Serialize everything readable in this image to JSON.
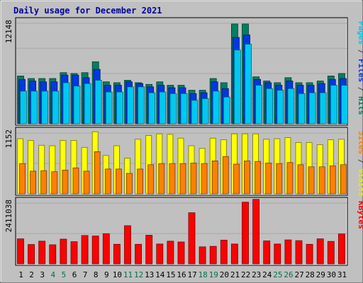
{
  "title": "Daily usage for December 2021",
  "chart_data": [
    {
      "type": "bar",
      "name": "hits-files-pages",
      "max_label": "12148",
      "right_label_parts": [
        {
          "text": "Pages",
          "color": "#00c8f0"
        },
        {
          "text": " / ",
          "color": "#404040"
        },
        {
          "text": "Files",
          "color": "#0038e0"
        },
        {
          "text": " / ",
          "color": "#404040"
        },
        {
          "text": "Hits",
          "color": "#008060"
        }
      ],
      "ylim": [
        0,
        12148
      ],
      "categories": [
        "1",
        "2",
        "3",
        "4",
        "5",
        "6",
        "7",
        "8",
        "9",
        "10",
        "11",
        "12",
        "13",
        "14",
        "15",
        "16",
        "17",
        "18",
        "19",
        "20",
        "21",
        "22",
        "23",
        "24",
        "25",
        "26",
        "27",
        "28",
        "29",
        "30",
        "31"
      ],
      "series": [
        {
          "name": "Hits",
          "color": "#008060",
          "values": [
            5700,
            5400,
            5400,
            5400,
            6100,
            6000,
            6100,
            7400,
            5000,
            4900,
            5200,
            4900,
            4700,
            5000,
            4600,
            4600,
            4000,
            4000,
            5400,
            4900,
            11900,
            11900,
            5600,
            5100,
            4900,
            5500,
            4900,
            4900,
            5100,
            5700,
            6000
          ]
        },
        {
          "name": "Files",
          "color": "#0038e0",
          "values": [
            5300,
            5100,
            5000,
            5000,
            5800,
            5800,
            5500,
            6500,
            4600,
            4600,
            5000,
            4800,
            4400,
            4600,
            4300,
            4300,
            3600,
            3700,
            5000,
            4200,
            10300,
            10600,
            5300,
            4900,
            4600,
            5100,
            4600,
            4600,
            4800,
            5300,
            5400
          ]
        },
        {
          "name": "Pages",
          "color": "#00c8f0",
          "values": [
            3900,
            3900,
            3900,
            3900,
            4900,
            4500,
            4800,
            5200,
            3800,
            3800,
            4400,
            4400,
            3700,
            3800,
            3600,
            3600,
            2800,
            3000,
            3900,
            3200,
            8800,
            9500,
            4600,
            4200,
            4000,
            4200,
            3600,
            3700,
            3700,
            4600,
            4600
          ]
        }
      ]
    },
    {
      "type": "bar",
      "name": "visits-sites",
      "max_label": "1152",
      "right_label_parts": [
        {
          "text": "Sites",
          "color": "#ff8000"
        },
        {
          "text": " / ",
          "color": "#404040"
        },
        {
          "text": "Visits",
          "color": "#e8e800"
        }
      ],
      "ylim": [
        0,
        1152
      ],
      "categories": [
        "1",
        "2",
        "3",
        "4",
        "5",
        "6",
        "7",
        "8",
        "9",
        "10",
        "11",
        "12",
        "13",
        "14",
        "15",
        "16",
        "17",
        "18",
        "19",
        "20",
        "21",
        "22",
        "23",
        "24",
        "25",
        "26",
        "27",
        "28",
        "29",
        "30",
        "31"
      ],
      "series": [
        {
          "name": "Visits",
          "color": "#ffff00",
          "values": [
            1020,
            990,
            900,
            890,
            990,
            990,
            860,
            1150,
            710,
            890,
            660,
            1010,
            1080,
            1110,
            1100,
            1030,
            890,
            840,
            1030,
            1000,
            1110,
            1110,
            1110,
            1010,
            1020,
            1040,
            950,
            950,
            910,
            1000,
            1010
          ]
        },
        {
          "name": "Sites",
          "color": "#ff8000",
          "values": [
            560,
            420,
            430,
            410,
            440,
            480,
            420,
            780,
            460,
            460,
            380,
            460,
            540,
            560,
            560,
            560,
            570,
            560,
            610,
            690,
            550,
            610,
            600,
            570,
            560,
            580,
            540,
            500,
            500,
            520,
            540
          ]
        }
      ]
    },
    {
      "type": "bar",
      "name": "kbytes",
      "max_label": "2411038",
      "right_label_parts": [
        {
          "text": "KBytes",
          "color": "#ff0000"
        }
      ],
      "ylim": [
        0,
        2411038
      ],
      "categories": [
        "1",
        "2",
        "3",
        "4",
        "5",
        "6",
        "7",
        "8",
        "9",
        "10",
        "11",
        "12",
        "13",
        "14",
        "15",
        "16",
        "17",
        "18",
        "19",
        "20",
        "21",
        "22",
        "23",
        "24",
        "25",
        "26",
        "27",
        "28",
        "29",
        "30",
        "31"
      ],
      "series": [
        {
          "name": "KBytes",
          "color": "#ff0000",
          "values": [
            970000,
            750000,
            880000,
            740000,
            960000,
            860000,
            1100000,
            1080000,
            1170000,
            760000,
            1480000,
            760000,
            1110000,
            770000,
            880000,
            850000,
            1980000,
            660000,
            680000,
            920000,
            770000,
            2390000,
            2500000,
            890000,
            770000,
            930000,
            900000,
            760000,
            970000,
            870000,
            1160000
          ]
        }
      ]
    }
  ],
  "weekend_days": [
    "4",
    "5",
    "11",
    "12",
    "18",
    "19",
    "25",
    "26"
  ]
}
